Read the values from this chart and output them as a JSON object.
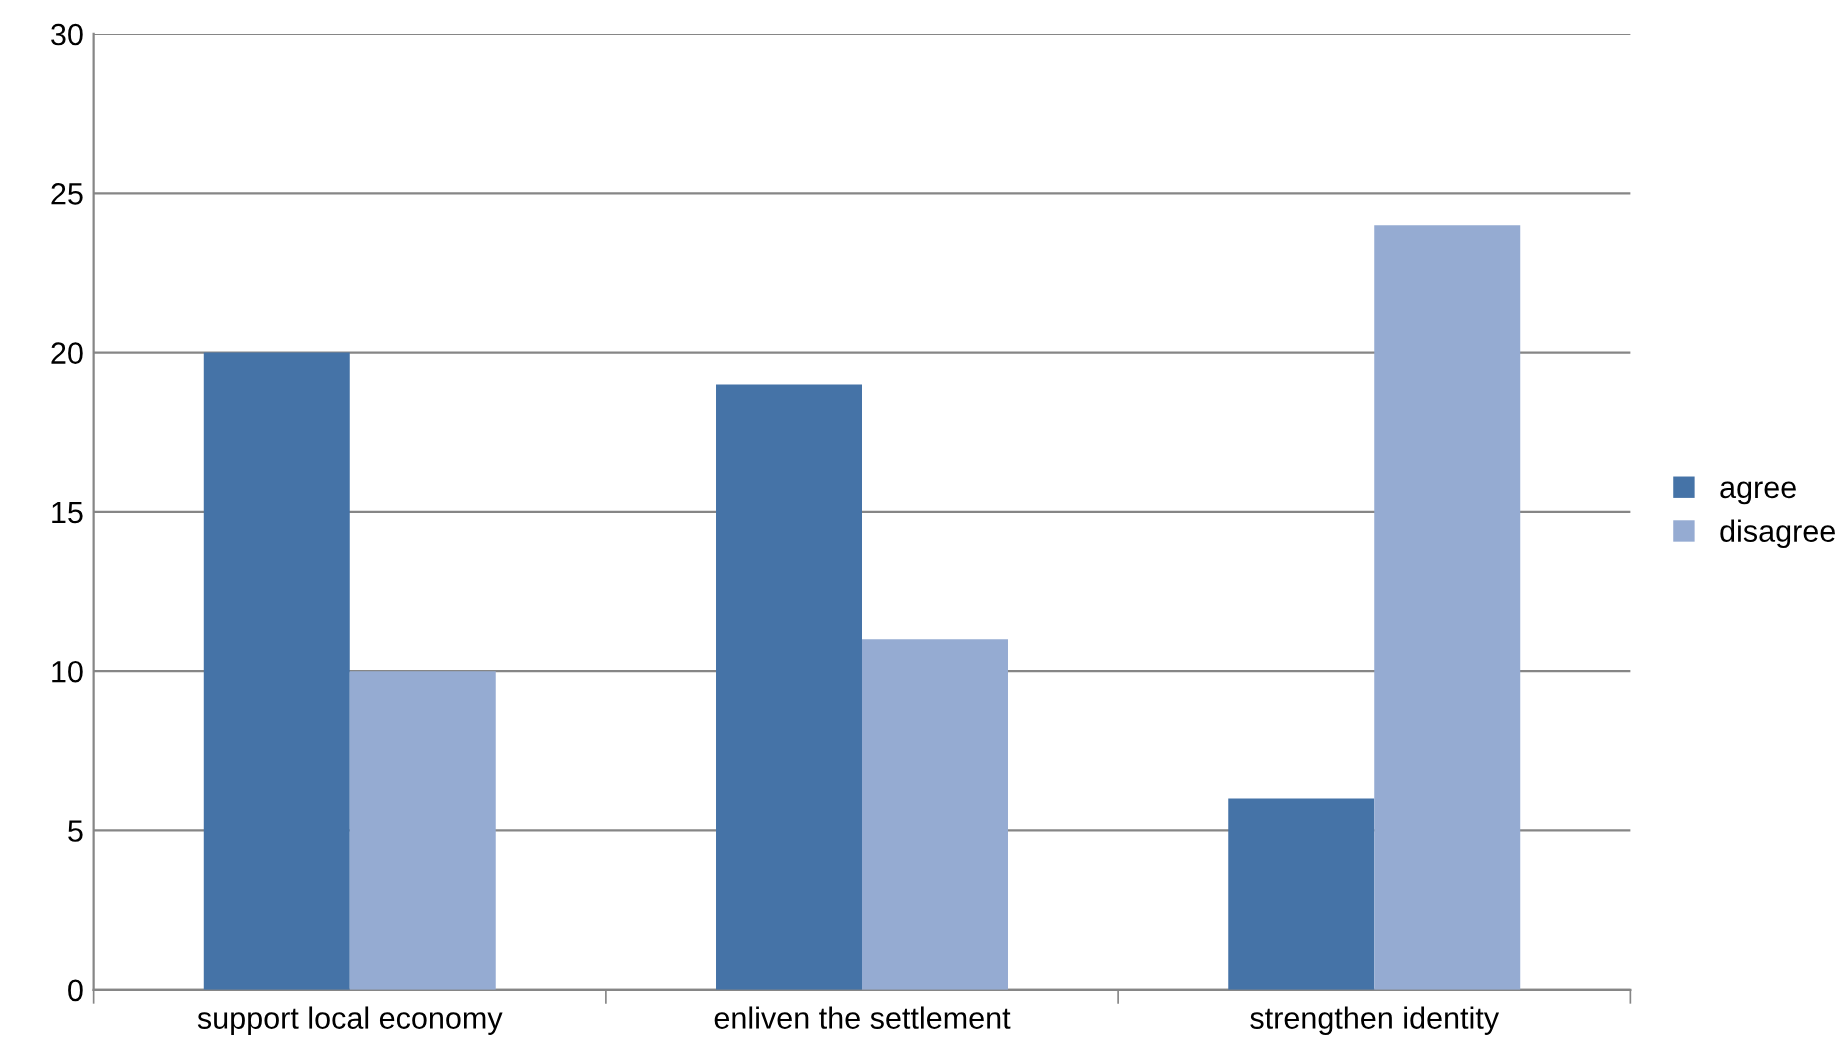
{
  "chart_data": {
    "type": "bar",
    "categories": [
      "support local economy",
      "enliven the settlement",
      "strengthen identity"
    ],
    "series": [
      {
        "name": "agree",
        "color": "#4573a7",
        "values": [
          20,
          19,
          6
        ]
      },
      {
        "name": "disagree",
        "color": "#95abd2",
        "values": [
          10,
          11,
          24
        ]
      }
    ],
    "ylim": [
      0,
      30
    ],
    "yticks": [
      0,
      5,
      10,
      15,
      20,
      25,
      30
    ],
    "grid": "y",
    "legend": "right"
  }
}
